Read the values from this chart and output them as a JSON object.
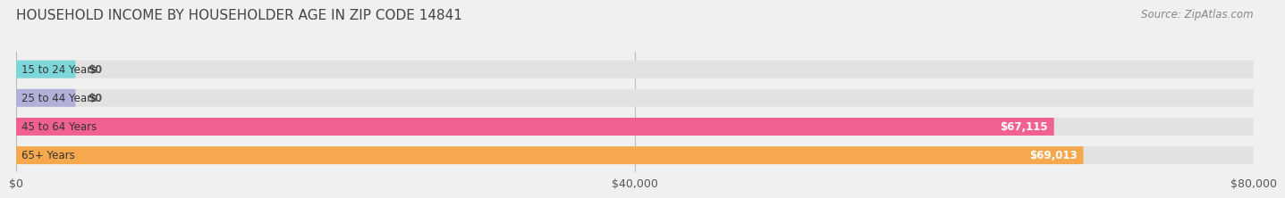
{
  "title": "HOUSEHOLD INCOME BY HOUSEHOLDER AGE IN ZIP CODE 14841",
  "source": "Source: ZipAtlas.com",
  "categories": [
    "15 to 24 Years",
    "25 to 44 Years",
    "45 to 64 Years",
    "65+ Years"
  ],
  "values": [
    0,
    0,
    67115,
    69013
  ],
  "bar_colors": [
    "#7dd6d8",
    "#b0b0d8",
    "#f06090",
    "#f5a84e"
  ],
  "xlim": [
    0,
    80000
  ],
  "xticks": [
    0,
    40000,
    80000
  ],
  "xtick_labels": [
    "$0",
    "$40,000",
    "$80,000"
  ],
  "bar_height": 0.62,
  "background_color": "#f0f0f0",
  "bar_bg_color": "#e2e2e2",
  "label_color_inside": "#ffffff",
  "label_color_outside": "#555555",
  "value_labels": [
    "$0",
    "$0",
    "$67,115",
    "$69,013"
  ],
  "title_fontsize": 11,
  "source_fontsize": 8.5,
  "tick_fontsize": 9,
  "bar_label_fontsize": 8.5,
  "cat_label_fontsize": 8.5
}
